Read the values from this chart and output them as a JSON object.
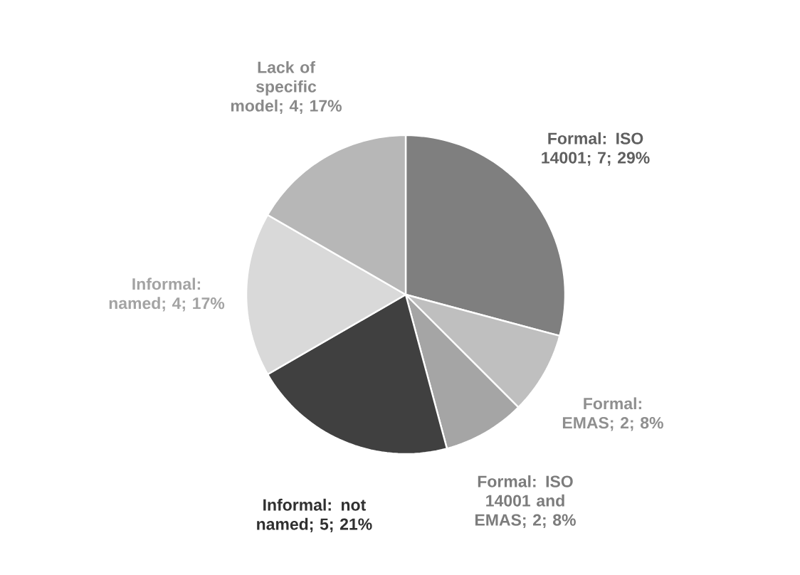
{
  "chart_data": {
    "type": "pie",
    "categories": [
      "Formal: ISO 14001",
      "Formal: EMAS",
      "Formal: ISO 14001 and EMAS",
      "Informal: not named",
      "Informal: named",
      "Lack of specific model"
    ],
    "values": [
      7,
      2,
      2,
      5,
      4,
      4
    ],
    "value_labels": [
      "; 7; 29%",
      "; 2; 8%",
      "; 2; 8%",
      "; 5; 21%",
      "; 4; 17%",
      "; 4; 17%"
    ],
    "colors": [
      "#7f7f7f",
      "#bfbfbf",
      "#a5a5a5",
      "#404040",
      "#d9d9d9",
      "#b7b7b7"
    ]
  }
}
